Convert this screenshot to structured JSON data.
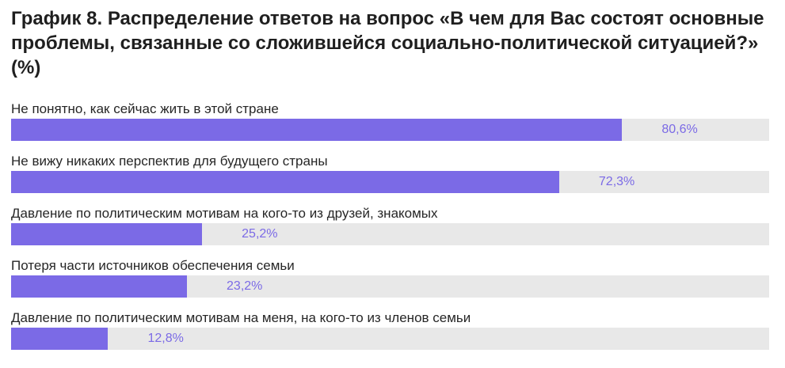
{
  "title": "График 8. Распределение ответов на вопрос «В чем для Вас состоят основные проблемы, связанные со сложившейся социально-политической ситуацией?» (%)",
  "colors": {
    "bar": "#7b6ae6",
    "track": "#e8e8e8",
    "value_text": "#7b6ae6"
  },
  "chart_data": {
    "type": "bar",
    "orientation": "horizontal",
    "title": "График 8. Распределение ответов на вопрос «В чем для Вас состоят основные проблемы, связанные со сложившейся социально-политической ситуацией?» (%)",
    "xlim": [
      0,
      100
    ],
    "grid": false,
    "categories": [
      "Не понятно, как сейчас жить в этой стране",
      "Не вижу никаких перспектив для будущего страны",
      "Давление по политическим мотивам на кого-то из друзей, знакомых",
      "Потеря части источников обеспечения семьи",
      "Давление по политическим мотивам на меня, на кого-то из членов семьи"
    ],
    "values": [
      80.6,
      72.3,
      25.2,
      23.2,
      12.8
    ],
    "value_labels": [
      "80,6%",
      "72,3%",
      "25,2%",
      "23,2%",
      "12,8%"
    ]
  }
}
